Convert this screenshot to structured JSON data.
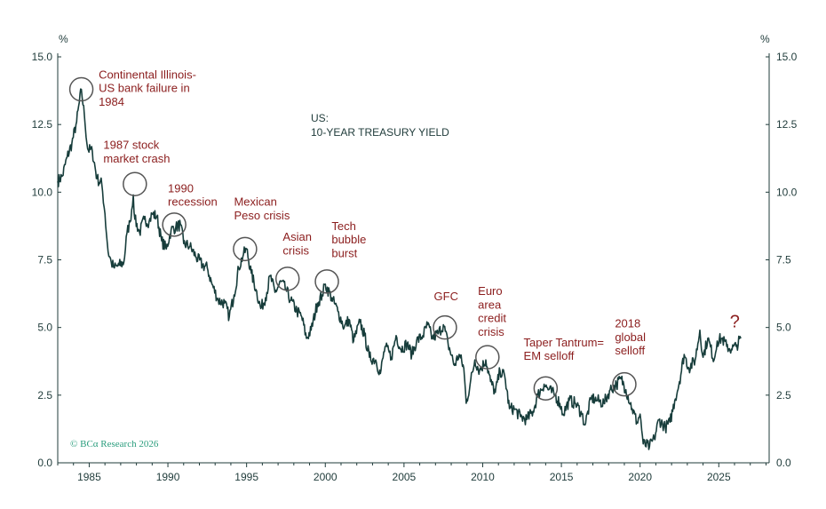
{
  "chart_data": {
    "type": "line",
    "title": "US:",
    "subtitle": "10-YEAR TREASURY YIELD",
    "ylabel_left": "%",
    "ylabel_right": "%",
    "xlim": [
      1983.0,
      2028.2
    ],
    "ylim": [
      0,
      15
    ],
    "y_ticks": [
      "0.0",
      "2.5",
      "5.0",
      "7.5",
      "10.0",
      "12.5",
      "15.0"
    ],
    "x_ticks": [
      "1985",
      "1990",
      "1995",
      "2000",
      "2005",
      "2010",
      "2015",
      "2020",
      "2025"
    ],
    "grid": false,
    "series": [
      {
        "color": "#173d3b",
        "points": [
          [
            1983.0,
            10.4
          ],
          [
            1983.3,
            10.6
          ],
          [
            1983.6,
            11.3
          ],
          [
            1983.9,
            11.8
          ],
          [
            1984.2,
            12.6
          ],
          [
            1984.5,
            13.8
          ],
          [
            1984.7,
            12.8
          ],
          [
            1984.9,
            11.6
          ],
          [
            1985.2,
            11.5
          ],
          [
            1985.5,
            10.5
          ],
          [
            1985.8,
            10.3
          ],
          [
            1986.0,
            9.2
          ],
          [
            1986.2,
            7.8
          ],
          [
            1986.4,
            7.4
          ],
          [
            1986.6,
            7.2
          ],
          [
            1986.9,
            7.3
          ],
          [
            1987.2,
            7.4
          ],
          [
            1987.4,
            8.5
          ],
          [
            1987.6,
            8.9
          ],
          [
            1987.8,
            9.9
          ],
          [
            1987.9,
            9.0
          ],
          [
            1988.2,
            8.5
          ],
          [
            1988.5,
            9.0
          ],
          [
            1988.8,
            8.9
          ],
          [
            1989.0,
            9.2
          ],
          [
            1989.3,
            9.1
          ],
          [
            1989.6,
            8.2
          ],
          [
            1989.9,
            7.9
          ],
          [
            1990.2,
            8.6
          ],
          [
            1990.5,
            8.7
          ],
          [
            1990.8,
            8.8
          ],
          [
            1991.0,
            8.1
          ],
          [
            1991.4,
            8.0
          ],
          [
            1991.8,
            7.6
          ],
          [
            1992.2,
            7.3
          ],
          [
            1992.5,
            7.2
          ],
          [
            1992.8,
            6.6
          ],
          [
            1993.2,
            6.0
          ],
          [
            1993.6,
            5.9
          ],
          [
            1993.9,
            5.4
          ],
          [
            1994.2,
            6.2
          ],
          [
            1994.5,
            7.2
          ],
          [
            1994.8,
            7.7
          ],
          [
            1995.0,
            7.9
          ],
          [
            1995.3,
            7.0
          ],
          [
            1995.6,
            6.4
          ],
          [
            1995.9,
            5.7
          ],
          [
            1996.2,
            6.1
          ],
          [
            1996.5,
            6.9
          ],
          [
            1996.8,
            6.3
          ],
          [
            1997.2,
            6.7
          ],
          [
            1997.5,
            6.4
          ],
          [
            1997.8,
            6.0
          ],
          [
            1998.2,
            5.6
          ],
          [
            1998.5,
            5.4
          ],
          [
            1998.8,
            4.6
          ],
          [
            1999.1,
            4.9
          ],
          [
            1999.5,
            5.9
          ],
          [
            1999.8,
            6.2
          ],
          [
            2000.0,
            6.6
          ],
          [
            2000.4,
            6.1
          ],
          [
            2000.8,
            5.6
          ],
          [
            2001.2,
            5.0
          ],
          [
            2001.5,
            5.3
          ],
          [
            2001.8,
            4.5
          ],
          [
            2002.2,
            5.2
          ],
          [
            2002.5,
            4.7
          ],
          [
            2002.8,
            3.9
          ],
          [
            2003.2,
            3.8
          ],
          [
            2003.5,
            3.3
          ],
          [
            2003.8,
            4.3
          ],
          [
            2004.2,
            3.9
          ],
          [
            2004.5,
            4.7
          ],
          [
            2004.8,
            4.2
          ],
          [
            2005.2,
            4.4
          ],
          [
            2005.5,
            4.0
          ],
          [
            2005.8,
            4.5
          ],
          [
            2006.2,
            4.7
          ],
          [
            2006.5,
            5.1
          ],
          [
            2006.8,
            4.6
          ],
          [
            2007.2,
            4.8
          ],
          [
            2007.5,
            5.1
          ],
          [
            2007.8,
            4.4
          ],
          [
            2008.2,
            3.6
          ],
          [
            2008.5,
            4.0
          ],
          [
            2008.8,
            3.5
          ],
          [
            2008.95,
            2.2
          ],
          [
            2009.2,
            2.9
          ],
          [
            2009.5,
            3.8
          ],
          [
            2009.8,
            3.4
          ],
          [
            2010.2,
            3.8
          ],
          [
            2010.5,
            3.0
          ],
          [
            2010.8,
            2.6
          ],
          [
            2011.1,
            3.4
          ],
          [
            2011.4,
            3.2
          ],
          [
            2011.7,
            2.0
          ],
          [
            2012.0,
            2.0
          ],
          [
            2012.4,
            1.7
          ],
          [
            2012.8,
            1.6
          ],
          [
            2013.2,
            1.9
          ],
          [
            2013.5,
            2.5
          ],
          [
            2013.9,
            2.9
          ],
          [
            2014.2,
            2.7
          ],
          [
            2014.6,
            2.5
          ],
          [
            2014.9,
            2.2
          ],
          [
            2015.1,
            1.8
          ],
          [
            2015.5,
            2.3
          ],
          [
            2015.9,
            2.2
          ],
          [
            2016.3,
            1.8
          ],
          [
            2016.5,
            1.4
          ],
          [
            2016.9,
            2.4
          ],
          [
            2017.3,
            2.3
          ],
          [
            2017.7,
            2.2
          ],
          [
            2018.1,
            2.7
          ],
          [
            2018.5,
            2.9
          ],
          [
            2018.8,
            3.1
          ],
          [
            2019.1,
            2.7
          ],
          [
            2019.5,
            2.0
          ],
          [
            2019.8,
            1.5
          ],
          [
            2020.0,
            1.8
          ],
          [
            2020.2,
            0.7
          ],
          [
            2020.6,
            0.6
          ],
          [
            2020.9,
            0.9
          ],
          [
            2021.2,
            1.6
          ],
          [
            2021.6,
            1.3
          ],
          [
            2021.9,
            1.5
          ],
          [
            2022.2,
            2.3
          ],
          [
            2022.5,
            3.0
          ],
          [
            2022.8,
            4.0
          ],
          [
            2023.1,
            3.5
          ],
          [
            2023.5,
            3.8
          ],
          [
            2023.8,
            4.9
          ],
          [
            2024.0,
            3.9
          ],
          [
            2024.3,
            4.6
          ],
          [
            2024.7,
            3.8
          ],
          [
            2024.9,
            4.5
          ],
          [
            2025.2,
            4.6
          ],
          [
            2025.5,
            4.3
          ],
          [
            2025.8,
            4.2
          ],
          [
            2026.1,
            4.3
          ],
          [
            2026.4,
            4.6
          ]
        ]
      }
    ],
    "annotations": [
      {
        "text": "Continental Illinois-",
        "x": 1985.6,
        "y": 14.2
      },
      {
        "text": "US bank failure in",
        "x": 1985.6,
        "y": 13.7
      },
      {
        "text": "1984",
        "x": 1985.6,
        "y": 13.2
      },
      {
        "text": "1987 stock",
        "x": 1985.9,
        "y": 11.6
      },
      {
        "text": "market crash",
        "x": 1985.9,
        "y": 11.1
      },
      {
        "text": "1990",
        "x": 1990.0,
        "y": 10.0
      },
      {
        "text": "recession",
        "x": 1990.0,
        "y": 9.5
      },
      {
        "text": "Mexican",
        "x": 1994.2,
        "y": 9.5
      },
      {
        "text": "Peso crisis",
        "x": 1994.2,
        "y": 9.0
      },
      {
        "text": "Asian",
        "x": 1997.3,
        "y": 8.2
      },
      {
        "text": "crisis",
        "x": 1997.3,
        "y": 7.7
      },
      {
        "text": "Tech",
        "x": 2000.4,
        "y": 8.6
      },
      {
        "text": "bubble",
        "x": 2000.4,
        "y": 8.1
      },
      {
        "text": "burst",
        "x": 2000.4,
        "y": 7.6
      },
      {
        "text": "GFC",
        "x": 2006.9,
        "y": 6.0
      },
      {
        "text": "Euro",
        "x": 2009.7,
        "y": 6.2
      },
      {
        "text": "area",
        "x": 2009.7,
        "y": 5.7
      },
      {
        "text": "credit",
        "x": 2009.7,
        "y": 5.2
      },
      {
        "text": "crisis",
        "x": 2009.7,
        "y": 4.7
      },
      {
        "text": "Taper Tantrum=",
        "x": 2012.6,
        "y": 4.3
      },
      {
        "text": "EM selloff",
        "x": 2012.6,
        "y": 3.8
      },
      {
        "text": "2018",
        "x": 2018.4,
        "y": 5.0
      },
      {
        "text": "global",
        "x": 2018.4,
        "y": 4.5
      },
      {
        "text": "selloff",
        "x": 2018.4,
        "y": 4.0
      },
      {
        "text": "?",
        "x": 2025.7,
        "y": 5.0
      }
    ],
    "circles": [
      {
        "x": 1984.5,
        "y": 13.8
      },
      {
        "x": 1987.9,
        "y": 10.3
      },
      {
        "x": 1990.4,
        "y": 8.8
      },
      {
        "x": 1994.9,
        "y": 7.9
      },
      {
        "x": 1997.6,
        "y": 6.8
      },
      {
        "x": 2000.1,
        "y": 6.7
      },
      {
        "x": 2007.6,
        "y": 5.0
      },
      {
        "x": 2010.3,
        "y": 3.9
      },
      {
        "x": 2014.0,
        "y": 2.75
      },
      {
        "x": 2019.0,
        "y": 2.9
      }
    ],
    "copyright": "© BCα Research 2026"
  },
  "colors": {
    "line": "#173d3b",
    "axis": "#1f3b3a",
    "annotation": "#8b1d1d",
    "circle": "#555555",
    "copyright": "#2a9d7d"
  }
}
